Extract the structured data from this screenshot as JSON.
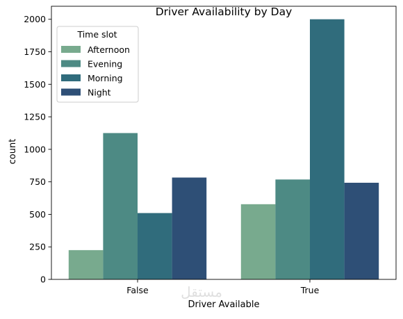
{
  "chart_data": {
    "type": "bar",
    "title": "Driver Availability by Day",
    "xlabel": "Driver Available",
    "ylabel": "count",
    "categories": [
      "False",
      "True"
    ],
    "ylim": [
      0,
      2100
    ],
    "yticks": [
      0,
      250,
      500,
      750,
      1000,
      1250,
      1500,
      1750,
      2000
    ],
    "grid": false,
    "legend": {
      "title": "Time slot",
      "placement": "top-left"
    },
    "series": [
      {
        "name": "Afternoon",
        "color": "#78aa8e",
        "values": [
          225,
          578
        ]
      },
      {
        "name": "Evening",
        "color": "#4d8a84",
        "values": [
          1125,
          768
        ]
      },
      {
        "name": "Morning",
        "color": "#306c7c",
        "values": [
          510,
          2000
        ]
      },
      {
        "name": "Night",
        "color": "#2e4f76",
        "values": [
          783,
          743
        ]
      }
    ]
  },
  "watermark": {
    "text": "مستقل"
  }
}
